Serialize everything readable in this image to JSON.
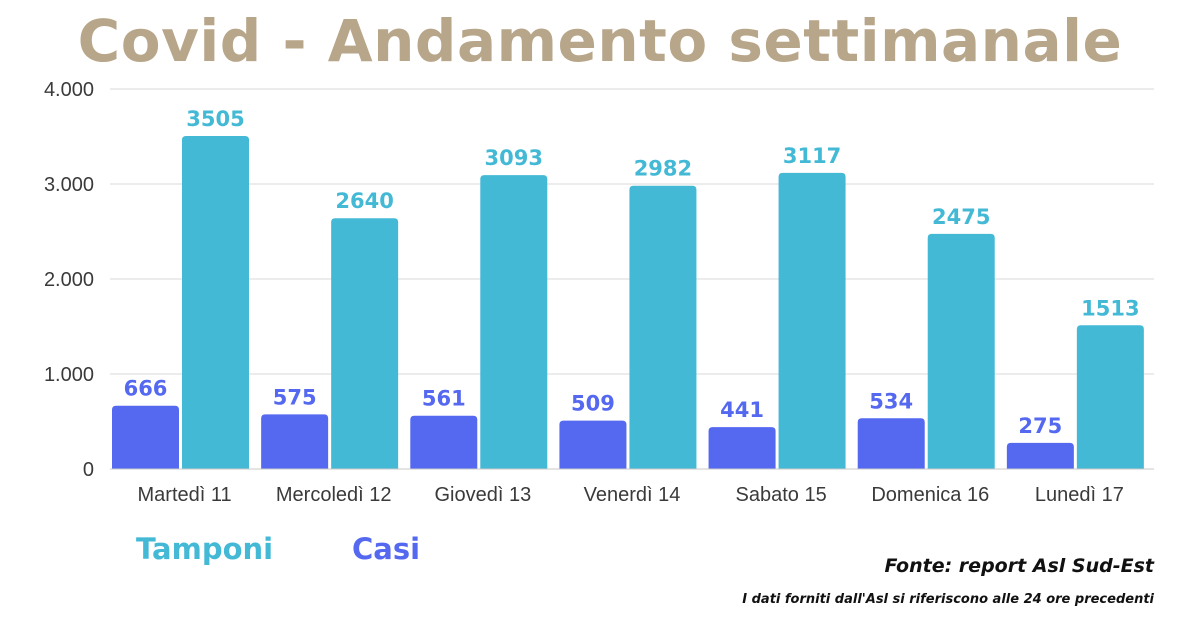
{
  "title": "Covid - Andamento settimanale",
  "colors": {
    "title": "#b8a68a",
    "casi": "#5468f0",
    "tamponi": "#43b9d6",
    "grid": "#d9d9d9"
  },
  "legend": {
    "tamponi": "Tamponi",
    "casi": "Casi"
  },
  "source": "Fonte: report Asl Sud-Est",
  "note": "I dati forniti dall'Asl si riferiscono alle 24 ore precedenti",
  "chart_data": {
    "type": "bar",
    "title": "Covid - Andamento settimanale",
    "categories": [
      "Martedì 11",
      "Mercoledì 12",
      "Giovedì 13",
      "Venerdì 14",
      "Sabato 15",
      "Domenica 16",
      "Lunedì 17"
    ],
    "series": [
      {
        "name": "Casi",
        "values": [
          666,
          575,
          561,
          509,
          441,
          534,
          275
        ]
      },
      {
        "name": "Tamponi",
        "values": [
          3505,
          2640,
          3093,
          2982,
          3117,
          2475,
          1513
        ]
      }
    ],
    "ylim": [
      0,
      4000
    ],
    "yticks": [
      "0",
      "1.000",
      "2.000",
      "3.000",
      "4.000"
    ],
    "ytick_values": [
      0,
      1000,
      2000,
      3000,
      4000
    ],
    "grid": true,
    "legend_position": "bottom-left"
  }
}
